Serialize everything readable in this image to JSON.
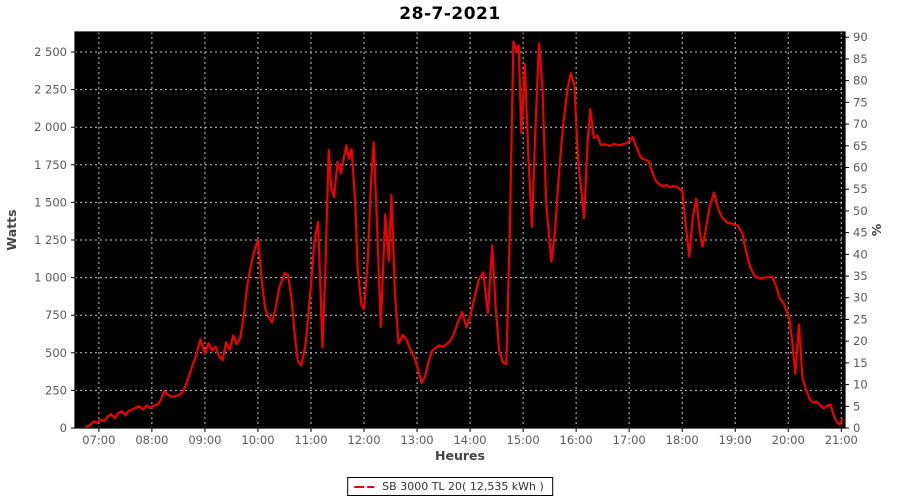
{
  "title": "28-7-2021",
  "chart_data": {
    "type": "line",
    "title": "28-7-2021",
    "xlabel": "Heures",
    "ylabel_left": "Watts",
    "ylabel_right": "%",
    "grid": true,
    "legend_position": "bottom-center",
    "plot_bg": "#000000",
    "grid_color": "#c9c9c9",
    "axis_line_color": "#000000",
    "tick_label_color": "#5a5a5a",
    "axis_title_color": "#444444",
    "x_range_hours": [
      6.55,
      21.07
    ],
    "y_left_range": [
      0,
      2633
    ],
    "y_right_range": [
      0,
      91.2
    ],
    "x_ticks": [
      "07:00",
      "08:00",
      "09:00",
      "10:00",
      "11:00",
      "12:00",
      "13:00",
      "14:00",
      "15:00",
      "16:00",
      "17:00",
      "18:00",
      "19:00",
      "20:00",
      "21:00"
    ],
    "y_left_ticks": [
      {
        "v": 0,
        "label": "0"
      },
      {
        "v": 250,
        "label": "250"
      },
      {
        "v": 500,
        "label": "500"
      },
      {
        "v": 750,
        "label": "750"
      },
      {
        "v": 1000,
        "label": "1 000"
      },
      {
        "v": 1250,
        "label": "1 250"
      },
      {
        "v": 1500,
        "label": "1 500"
      },
      {
        "v": 1750,
        "label": "1 750"
      },
      {
        "v": 2000,
        "label": "2 000"
      },
      {
        "v": 2250,
        "label": "2 250"
      },
      {
        "v": 2500,
        "label": "2 500"
      }
    ],
    "y_right_ticks": [
      0,
      5,
      10,
      15,
      20,
      25,
      30,
      35,
      40,
      45,
      50,
      55,
      60,
      65,
      70,
      75,
      80,
      85,
      90
    ],
    "series": [
      {
        "name": "SB 3000 TL 20( 12,535 kWh )",
        "color": "#ee0000",
        "points": [
          [
            "06:45",
            5
          ],
          [
            "06:50",
            20
          ],
          [
            "06:54",
            45
          ],
          [
            "06:58",
            35
          ],
          [
            "07:02",
            55
          ],
          [
            "07:06",
            48
          ],
          [
            "07:10",
            75
          ],
          [
            "07:14",
            92
          ],
          [
            "07:18",
            65
          ],
          [
            "07:22",
            100
          ],
          [
            "07:26",
            112
          ],
          [
            "07:30",
            85
          ],
          [
            "07:34",
            115
          ],
          [
            "07:38",
            125
          ],
          [
            "07:42",
            135
          ],
          [
            "07:46",
            145
          ],
          [
            "07:50",
            122
          ],
          [
            "07:54",
            150
          ],
          [
            "07:58",
            132
          ],
          [
            "08:02",
            148
          ],
          [
            "08:06",
            155
          ],
          [
            "08:10",
            185
          ],
          [
            "08:14",
            245
          ],
          [
            "08:18",
            222
          ],
          [
            "08:22",
            208
          ],
          [
            "08:26",
            212
          ],
          [
            "08:30",
            218
          ],
          [
            "08:34",
            232
          ],
          [
            "08:38",
            280
          ],
          [
            "08:42",
            345
          ],
          [
            "08:46",
            420
          ],
          [
            "08:50",
            480
          ],
          [
            "08:55",
            590
          ],
          [
            "09:00",
            495
          ],
          [
            "09:04",
            565
          ],
          [
            "09:08",
            515
          ],
          [
            "09:12",
            540
          ],
          [
            "09:16",
            478
          ],
          [
            "09:20",
            452
          ],
          [
            "09:24",
            570
          ],
          [
            "09:28",
            520
          ],
          [
            "09:32",
            615
          ],
          [
            "09:36",
            558
          ],
          [
            "09:40",
            600
          ],
          [
            "09:44",
            750
          ],
          [
            "09:48",
            950
          ],
          [
            "09:52",
            1080
          ],
          [
            "09:56",
            1180
          ],
          [
            "10:00",
            1250
          ],
          [
            "10:04",
            1000
          ],
          [
            "10:08",
            800
          ],
          [
            "10:12",
            735
          ],
          [
            "10:16",
            702
          ],
          [
            "10:20",
            800
          ],
          [
            "10:24",
            930
          ],
          [
            "10:30",
            1030
          ],
          [
            "10:34",
            1020
          ],
          [
            "10:38",
            860
          ],
          [
            "10:42",
            600
          ],
          [
            "10:45",
            450
          ],
          [
            "10:49",
            415
          ],
          [
            "10:54",
            560
          ],
          [
            "11:00",
            950
          ],
          [
            "11:04",
            1250
          ],
          [
            "11:08",
            1370
          ],
          [
            "11:13",
            535
          ],
          [
            "11:16",
            1000
          ],
          [
            "11:20",
            1850
          ],
          [
            "11:23",
            1600
          ],
          [
            "11:26",
            1535
          ],
          [
            "11:30",
            1770
          ],
          [
            "11:34",
            1695
          ],
          [
            "11:40",
            1880
          ],
          [
            "11:43",
            1790
          ],
          [
            "11:46",
            1855
          ],
          [
            "11:50",
            1500
          ],
          [
            "11:53",
            1050
          ],
          [
            "11:57",
            820
          ],
          [
            "12:00",
            790
          ],
          [
            "12:04",
            1100
          ],
          [
            "12:08",
            1650
          ],
          [
            "12:11",
            1900
          ],
          [
            "12:15",
            1300
          ],
          [
            "12:19",
            672
          ],
          [
            "12:24",
            1420
          ],
          [
            "12:28",
            1110
          ],
          [
            "12:31",
            1550
          ],
          [
            "12:35",
            900
          ],
          [
            "12:39",
            562
          ],
          [
            "12:44",
            620
          ],
          [
            "12:48",
            588
          ],
          [
            "12:52",
            528
          ],
          [
            "12:57",
            470
          ],
          [
            "13:01",
            392
          ],
          [
            "13:05",
            300
          ],
          [
            "13:09",
            340
          ],
          [
            "13:13",
            440
          ],
          [
            "13:17",
            512
          ],
          [
            "13:21",
            532
          ],
          [
            "13:25",
            550
          ],
          [
            "13:29",
            540
          ],
          [
            "13:33",
            556
          ],
          [
            "13:37",
            575
          ],
          [
            "13:41",
            615
          ],
          [
            "13:46",
            700
          ],
          [
            "13:51",
            770
          ],
          [
            "13:56",
            670
          ],
          [
            "14:00",
            740
          ],
          [
            "14:05",
            868
          ],
          [
            "14:10",
            988
          ],
          [
            "14:15",
            1035
          ],
          [
            "14:20",
            762
          ],
          [
            "14:25",
            1215
          ],
          [
            "14:29",
            800
          ],
          [
            "14:33",
            515
          ],
          [
            "14:37",
            438
          ],
          [
            "14:41",
            424
          ],
          [
            "14:45",
            1300
          ],
          [
            "14:49",
            2570
          ],
          [
            "14:53",
            2500
          ],
          [
            "14:55",
            2545
          ],
          [
            "14:58",
            1962
          ],
          [
            "15:02",
            2420
          ],
          [
            "15:06",
            1800
          ],
          [
            "15:10",
            1338
          ],
          [
            "15:14",
            2000
          ],
          [
            "15:18",
            2558
          ],
          [
            "15:22",
            2250
          ],
          [
            "15:26",
            1500
          ],
          [
            "15:32",
            1105
          ],
          [
            "15:36",
            1300
          ],
          [
            "15:40",
            1650
          ],
          [
            "15:45",
            2000
          ],
          [
            "15:50",
            2248
          ],
          [
            "15:54",
            2360
          ],
          [
            "15:58",
            2280
          ],
          [
            "16:02",
            1800
          ],
          [
            "16:09",
            1395
          ],
          [
            "16:13",
            1900
          ],
          [
            "16:16",
            2120
          ],
          [
            "16:20",
            1928
          ],
          [
            "16:24",
            1945
          ],
          [
            "16:28",
            1882
          ],
          [
            "16:33",
            1886
          ],
          [
            "16:38",
            1876
          ],
          [
            "16:43",
            1890
          ],
          [
            "16:48",
            1880
          ],
          [
            "16:53",
            1886
          ],
          [
            "16:58",
            1896
          ],
          [
            "17:04",
            1935
          ],
          [
            "17:09",
            1858
          ],
          [
            "17:13",
            1800
          ],
          [
            "17:17",
            1786
          ],
          [
            "17:22",
            1775
          ],
          [
            "17:26",
            1706
          ],
          [
            "17:30",
            1645
          ],
          [
            "17:34",
            1620
          ],
          [
            "17:38",
            1606
          ],
          [
            "17:42",
            1616
          ],
          [
            "17:46",
            1600
          ],
          [
            "17:50",
            1610
          ],
          [
            "17:55",
            1600
          ],
          [
            "18:00",
            1578
          ],
          [
            "18:04",
            1350
          ],
          [
            "18:08",
            1140
          ],
          [
            "18:12",
            1400
          ],
          [
            "18:16",
            1525
          ],
          [
            "18:20",
            1298
          ],
          [
            "18:23",
            1205
          ],
          [
            "18:27",
            1330
          ],
          [
            "18:31",
            1470
          ],
          [
            "18:36",
            1565
          ],
          [
            "18:41",
            1452
          ],
          [
            "18:45",
            1400
          ],
          [
            "18:51",
            1365
          ],
          [
            "18:57",
            1358
          ],
          [
            "19:03",
            1345
          ],
          [
            "19:08",
            1296
          ],
          [
            "19:12",
            1180
          ],
          [
            "19:17",
            1068
          ],
          [
            "19:22",
            1010
          ],
          [
            "19:27",
            994
          ],
          [
            "19:32",
            1000
          ],
          [
            "19:37",
            1002
          ],
          [
            "19:42",
            1006
          ],
          [
            "19:46",
            948
          ],
          [
            "19:50",
            868
          ],
          [
            "19:55",
            828
          ],
          [
            "20:01",
            735
          ],
          [
            "20:04",
            600
          ],
          [
            "20:08",
            360
          ],
          [
            "20:12",
            688
          ],
          [
            "20:16",
            338
          ],
          [
            "20:20",
            256
          ],
          [
            "20:24",
            195
          ],
          [
            "20:28",
            168
          ],
          [
            "20:32",
            176
          ],
          [
            "20:36",
            152
          ],
          [
            "20:40",
            130
          ],
          [
            "20:44",
            148
          ],
          [
            "20:48",
            154
          ],
          [
            "20:51",
            92
          ],
          [
            "20:55",
            38
          ],
          [
            "20:58",
            24
          ],
          [
            "21:01",
            55
          ]
        ]
      }
    ]
  },
  "legend": {
    "label": "SB 3000 TL 20( 12,535 kWh )",
    "marker_color": "#ee0000"
  }
}
